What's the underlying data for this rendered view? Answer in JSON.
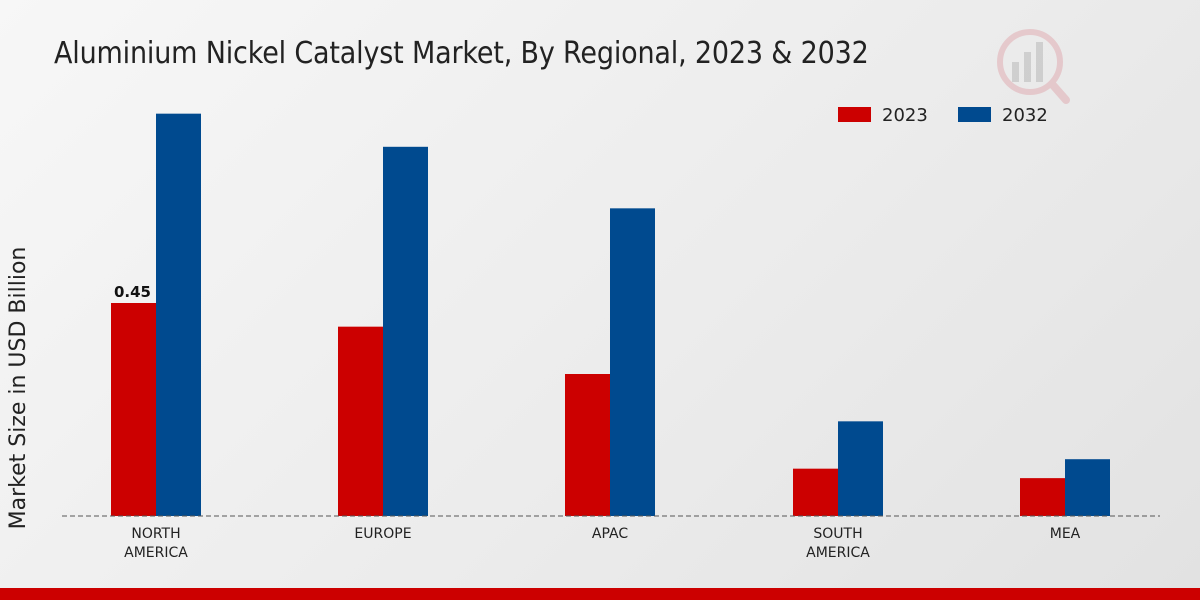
{
  "chart_data": {
    "type": "bar",
    "title": "Aluminium Nickel Catalyst Market, By Regional, 2023 & 2032",
    "xlabel": "",
    "ylabel": "Market Size in USD Billion",
    "ylim": [
      0,
      0.9
    ],
    "categories": [
      "NORTH\nAMERICA",
      "EUROPE",
      "APAC",
      "SOUTH\nAMERICA",
      "MEA"
    ],
    "series": [
      {
        "name": "2023",
        "color": "#cc0000",
        "values": [
          0.45,
          0.4,
          0.3,
          0.1,
          0.08
        ]
      },
      {
        "name": "2032",
        "color": "#004a8f",
        "values": [
          0.85,
          0.78,
          0.65,
          0.2,
          0.12
        ]
      }
    ],
    "annotations": [
      {
        "series": 0,
        "category": 0,
        "text": "0.45"
      }
    ],
    "legend_position": "top-right",
    "grid": false
  },
  "colors": {
    "bottom_bar": "#cc0000",
    "baseline": "#555555"
  }
}
